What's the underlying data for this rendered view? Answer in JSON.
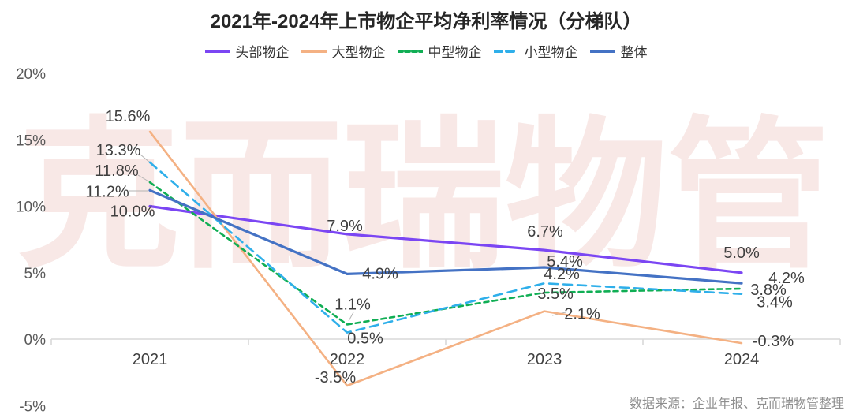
{
  "title": "2021年-2024年上市物企平均净利率情况（分梯队）",
  "watermark": "克而瑞物管",
  "source": "数据来源：企业年报、克而瑞物管整理",
  "chart_data": {
    "type": "line",
    "categories": [
      "2021",
      "2022",
      "2023",
      "2024"
    ],
    "series": [
      {
        "id": "head",
        "name": "头部物企",
        "color": "#7B46F3",
        "dash": null,
        "width": 3.2,
        "values": [
          10.0,
          7.9,
          6.7,
          5.0
        ]
      },
      {
        "id": "large",
        "name": "大型物企",
        "color": "#F4B183",
        "dash": null,
        "width": 2.6,
        "values": [
          15.6,
          -3.5,
          2.1,
          -0.3
        ]
      },
      {
        "id": "mid",
        "name": "中型物企",
        "color": "#10AE54",
        "dash": "6 5",
        "width": 2.6,
        "values": [
          11.8,
          1.1,
          3.5,
          3.8
        ]
      },
      {
        "id": "small",
        "name": "小型物企",
        "color": "#2FAFEA",
        "dash": "11 7",
        "width": 2.6,
        "values": [
          13.3,
          0.5,
          4.2,
          3.4
        ]
      },
      {
        "id": "overall",
        "name": "整体",
        "color": "#4472C4",
        "dash": null,
        "width": 3.2,
        "values": [
          11.2,
          4.9,
          5.4,
          4.2
        ]
      }
    ],
    "y_ticks": [
      20,
      15,
      10,
      5,
      0,
      -5
    ],
    "ylim": [
      -5,
      20
    ],
    "y_unit": "%",
    "grid": false,
    "legend_position": "top",
    "data_labels": true
  }
}
